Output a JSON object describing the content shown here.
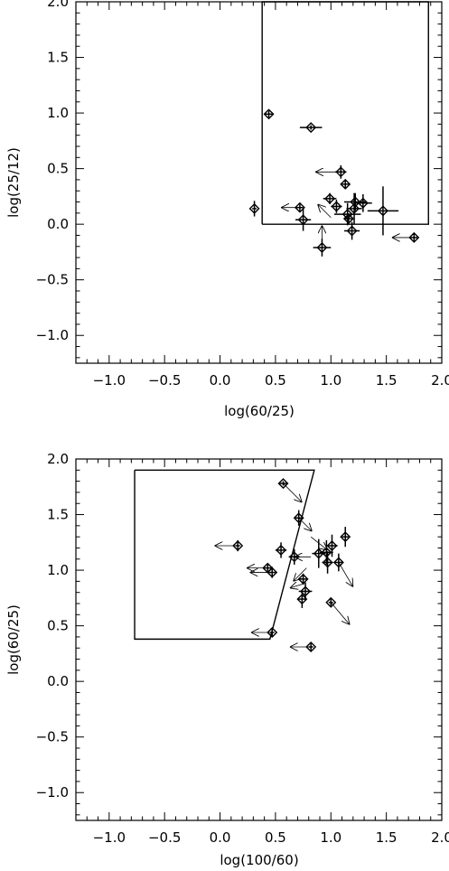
{
  "chart_data": [
    {
      "type": "scatter",
      "xlabel": "log(60/25)",
      "ylabel": "log(25/12)",
      "xlim": [
        -1.3,
        2.0
      ],
      "ylim": [
        -1.25,
        2.0
      ],
      "xticks": [
        "−1.0",
        "−0.5",
        "0.0",
        "0.5",
        "1.0",
        "1.5",
        "2.0"
      ],
      "xtick_values": [
        -1.0,
        -0.5,
        0.0,
        0.5,
        1.0,
        1.5,
        2.0
      ],
      "yticks": [
        "−1.0",
        "−0.5",
        "0.0",
        "0.5",
        "1.0",
        "1.5",
        "2.0"
      ],
      "ytick_values": [
        -1.0,
        -0.5,
        0.0,
        0.5,
        1.0,
        1.5,
        2.0
      ],
      "region": [
        [
          0.38,
          0.0
        ],
        [
          0.38,
          2.0
        ],
        [
          1.88,
          2.0
        ],
        [
          1.88,
          0.0
        ],
        [
          0.38,
          0.0
        ]
      ],
      "points": [
        {
          "x": 0.44,
          "y": 0.99,
          "xerr": 0.04,
          "yerr": 0.03
        },
        {
          "x": 0.82,
          "y": 0.87,
          "xerr": 0.1,
          "yerr": 0.02
        },
        {
          "x": 0.31,
          "y": 0.14,
          "xerr": 0.02,
          "yerr": 0.07
        },
        {
          "x": 1.09,
          "y": 0.47,
          "xerr": 0.05,
          "yerr": 0.06,
          "arrow": [
            -0.23,
            0
          ]
        },
        {
          "x": 1.13,
          "y": 0.36,
          "xerr": 0.03,
          "yerr": 0.04
        },
        {
          "x": 0.99,
          "y": 0.23,
          "xerr": 0.06,
          "yerr": 0.05
        },
        {
          "x": 1.05,
          "y": 0.16,
          "xerr": 0.05,
          "yerr": 0.06
        },
        {
          "x": 1.22,
          "y": 0.2,
          "xerr": 0.1,
          "yerr": 0.08
        },
        {
          "x": 1.29,
          "y": 0.19,
          "xerr": 0.08,
          "yerr": 0.08
        },
        {
          "x": 1.21,
          "y": 0.14,
          "xerr": 0.07,
          "yerr": 0.14
        },
        {
          "x": 1.15,
          "y": 0.09,
          "xerr": 0.12,
          "yerr": 0.1
        },
        {
          "x": 1.16,
          "y": 0.05,
          "xerr": 0.04,
          "yerr": 0.04
        },
        {
          "x": 0.72,
          "y": 0.15,
          "xerr": 0.03,
          "yerr": 0.04,
          "arrow": [
            -0.17,
            0
          ]
        },
        {
          "x": 0.75,
          "y": 0.04,
          "xerr": 0.07,
          "yerr": 0.1
        },
        {
          "x": 1.19,
          "y": -0.06,
          "xerr": 0.07,
          "yerr": 0.08
        },
        {
          "x": 1.47,
          "y": 0.12,
          "xerr": 0.14,
          "yerr": 0.22
        },
        {
          "x": 0.92,
          "y": -0.21,
          "xerr": 0.08,
          "yerr": 0.08,
          "arrow": [
            0,
            0.2
          ]
        },
        {
          "x": 1.75,
          "y": -0.12,
          "xerr": 0.03,
          "yerr": 0.04,
          "arrow": [
            -0.2,
            0
          ]
        }
      ],
      "arrows_only": [
        {
          "x": 1.0,
          "y": 0.06,
          "dx": -0.12,
          "dy": 0.12
        }
      ]
    },
    {
      "type": "scatter",
      "xlabel": "log(100/60)",
      "ylabel": "log(60/25)",
      "xlim": [
        -1.3,
        2.0
      ],
      "ylim": [
        -1.25,
        2.0
      ],
      "xticks": [
        "−1.0",
        "−0.5",
        "0.0",
        "0.5",
        "1.0",
        "1.5",
        "2.0"
      ],
      "xtick_values": [
        -1.0,
        -0.5,
        0.0,
        0.5,
        1.0,
        1.5,
        2.0
      ],
      "yticks": [
        "−1.0",
        "−0.5",
        "0.0",
        "0.5",
        "1.0",
        "1.5",
        "2.0"
      ],
      "ytick_values": [
        -1.0,
        -0.5,
        0.0,
        0.5,
        1.0,
        1.5,
        2.0
      ],
      "region": [
        [
          -0.77,
          1.9
        ],
        [
          -0.77,
          0.38
        ],
        [
          0.45,
          0.38
        ],
        [
          0.85,
          1.9
        ],
        [
          -0.77,
          1.9
        ]
      ],
      "points": [
        {
          "x": 0.57,
          "y": 1.78,
          "xerr": 0.04,
          "yerr": 0.02,
          "arrow": [
            0.17,
            -0.17
          ]
        },
        {
          "x": 0.71,
          "y": 1.47,
          "xerr": 0.03,
          "yerr": 0.07,
          "arrow": [
            0.12,
            -0.12
          ]
        },
        {
          "x": 0.16,
          "y": 1.22,
          "xerr": 0.02,
          "yerr": 0.05,
          "arrow": [
            -0.21,
            0
          ]
        },
        {
          "x": 0.55,
          "y": 1.18,
          "xerr": 0.05,
          "yerr": 0.07
        },
        {
          "x": 0.67,
          "y": 1.12,
          "xerr": 0.05,
          "yerr": 0.07
        },
        {
          "x": 0.43,
          "y": 1.02,
          "xerr": 0.03,
          "yerr": 0.03,
          "arrow": [
            -0.19,
            0
          ]
        },
        {
          "x": 0.47,
          "y": 0.98,
          "xerr": 0.03,
          "yerr": 0.05,
          "arrow": [
            -0.2,
            0
          ]
        },
        {
          "x": 0.89,
          "y": 1.15,
          "xerr": 0.06,
          "yerr": 0.13
        },
        {
          "x": 0.96,
          "y": 1.16,
          "xerr": 0.06,
          "yerr": 0.11
        },
        {
          "x": 1.01,
          "y": 1.22,
          "xerr": 0.05,
          "yerr": 0.1
        },
        {
          "x": 1.13,
          "y": 1.3,
          "xerr": 0.03,
          "yerr": 0.09
        },
        {
          "x": 0.97,
          "y": 1.07,
          "xerr": 0.05,
          "yerr": 0.1
        },
        {
          "x": 1.07,
          "y": 1.07,
          "xerr": 0.04,
          "yerr": 0.08,
          "arrow": [
            0.13,
            -0.22
          ]
        },
        {
          "x": 0.75,
          "y": 0.92,
          "xerr": 0.04,
          "yerr": 0.05
        },
        {
          "x": 0.77,
          "y": 0.81,
          "xerr": 0.06,
          "yerr": 0.08
        },
        {
          "x": 0.74,
          "y": 0.74,
          "xerr": 0.04,
          "yerr": 0.08
        },
        {
          "x": 1.0,
          "y": 0.71,
          "xerr": 0.02,
          "yerr": 0.03,
          "arrow": [
            0.17,
            -0.2
          ]
        },
        {
          "x": 0.47,
          "y": 0.44,
          "xerr": 0.02,
          "yerr": 0.04,
          "arrow": [
            -0.19,
            0
          ]
        },
        {
          "x": 0.82,
          "y": 0.31,
          "xerr": 0.02,
          "yerr": 0.03,
          "arrow": [
            -0.19,
            0
          ]
        }
      ],
      "arrows_only": [
        {
          "x": 0.82,
          "y": 1.3,
          "dx": 0.15,
          "dy": -0.12
        },
        {
          "x": 0.82,
          "y": 1.12,
          "dx": -0.15,
          "dy": 0.0
        },
        {
          "x": 0.78,
          "y": 1.02,
          "dx": -0.12,
          "dy": -0.12
        },
        {
          "x": 0.76,
          "y": 0.88,
          "dx": -0.13,
          "dy": -0.04
        }
      ]
    }
  ]
}
